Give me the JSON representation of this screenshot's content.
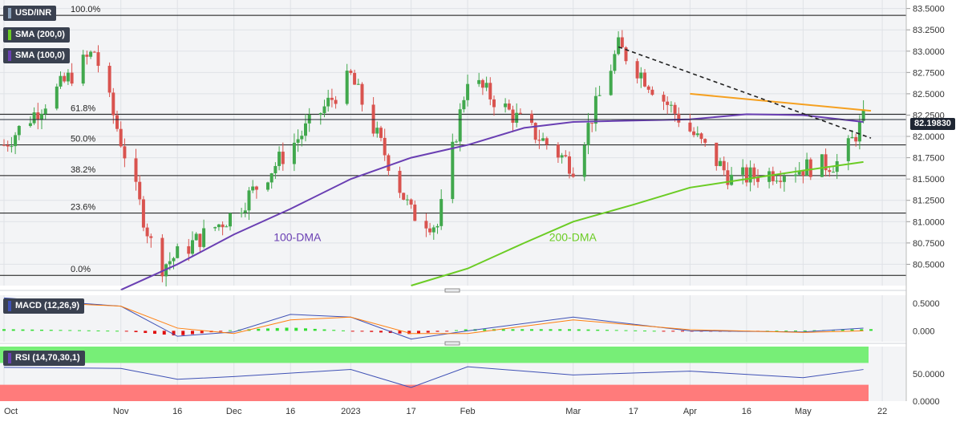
{
  "symbol": "USD/INR",
  "price_tag": "82.19830",
  "colors": {
    "up": "#41a84d",
    "down": "#d9534f",
    "sma100": "#6a3fb3",
    "sma200": "#6bcc24",
    "resistance": "#f5a020",
    "trendline": "#222222",
    "rsi_upper": "#77ee77",
    "rsi_lower": "#ff7b7b",
    "macd_line": "#3f51b5",
    "signal_line": "#ff7f0e"
  },
  "legend": {
    "sma200": "SMA (200,0)",
    "sma100": "SMA (100,0)",
    "macd": "MACD (12,26,9)",
    "rsi": "RSI (14,70,30,1)"
  },
  "annotations": {
    "dma100": "100-DMA",
    "dma200": "200-DMA"
  },
  "fib_labels": [
    "100.0%",
    "61.8%",
    "50.0%",
    "38.2%",
    "23.6%",
    "0.0%"
  ],
  "x_tick_labels": [
    "Oct",
    "Nov",
    "16",
    "Dec",
    "16",
    "2023",
    "17",
    "Feb",
    "Mar",
    "17",
    "Apr",
    "16",
    "May",
    "22"
  ],
  "chart_data": [
    {
      "type": "candlestick",
      "title": "USD/INR",
      "ylim": [
        80.25,
        83.6
      ],
      "y_ticks": [
        "83.5000",
        "83.2500",
        "83.0000",
        "82.7500",
        "82.5000",
        "82.2500",
        "82.0000",
        "81.7500",
        "81.5000",
        "81.2500",
        "81.0000",
        "80.7500",
        "80.5000"
      ],
      "fibonacci_levels": [
        {
          "label": "100.0%",
          "value": 83.42
        },
        {
          "label": "61.8%",
          "value": 82.26
        },
        {
          "label": "50.0%",
          "value": 81.9
        },
        {
          "label": "38.2%",
          "value": 81.54
        },
        {
          "label": "23.6%",
          "value": 81.1
        },
        {
          "label": "0.0%",
          "value": 80.37
        }
      ],
      "last_price": 82.1983,
      "key_points": [
        {
          "x": "Oct",
          "close": 81.9
        },
        {
          "x": "Oct (late)",
          "high": 83.0
        },
        {
          "x": "Nov 10",
          "low": 80.45
        },
        {
          "x": "Dec",
          "close": 81.1
        },
        {
          "x": "2023",
          "close": 82.7
        },
        {
          "x": "17",
          "low": 81.1
        },
        {
          "x": "Jan (late)",
          "low": 80.95
        },
        {
          "x": "Feb",
          "close": 82.7
        },
        {
          "x": "Mar",
          "low": 81.65
        },
        {
          "x": "Mar 13",
          "high": 83.05
        },
        {
          "x": "Apr 13",
          "low": 81.5
        },
        {
          "x": "May 10",
          "low": 81.7
        },
        {
          "x": "May 16",
          "close": 82.2
        }
      ],
      "series": [
        {
          "name": "100-DMA",
          "x": [
            "Nov 1",
            "Nov 16",
            "Dec",
            "Dec 16",
            "2023",
            "Jan 17",
            "Feb",
            "Feb 16",
            "Mar",
            "Apr",
            "Apr 16",
            "May",
            "May 16"
          ],
          "values": [
            80.2,
            80.5,
            80.85,
            81.15,
            81.5,
            81.75,
            81.9,
            82.1,
            82.17,
            82.2,
            82.26,
            82.25,
            82.17
          ]
        },
        {
          "name": "200-DMA",
          "x": [
            "Jan 17",
            "Feb",
            "Feb 16",
            "Mar",
            "Mar 17",
            "Apr",
            "Apr 16",
            "May",
            "May 16"
          ],
          "values": [
            80.25,
            80.45,
            80.75,
            81.0,
            81.2,
            81.4,
            81.5,
            81.6,
            81.7
          ]
        },
        {
          "name": "Resistance",
          "x": [
            "Apr",
            "May 18"
          ],
          "values": [
            82.5,
            82.3
          ]
        },
        {
          "name": "Falling trendline",
          "x": [
            "Mar 13",
            "May 18"
          ],
          "values": [
            83.05,
            81.98
          ]
        }
      ]
    },
    {
      "type": "line",
      "title": "MACD (12,26,9)",
      "ylim": [
        -0.2,
        0.65
      ],
      "y_ticks": [
        "0.5000",
        "0.000"
      ],
      "series": [
        {
          "name": "MACD",
          "x": [
            "Oct",
            "Nov",
            "Nov 16",
            "Dec",
            "Dec 16",
            "2023",
            "Jan 17",
            "Feb",
            "Mar",
            "Apr",
            "May",
            "May 16"
          ],
          "values": [
            0.6,
            0.45,
            -0.1,
            -0.02,
            0.3,
            0.25,
            -0.15,
            0.0,
            0.25,
            0.0,
            -0.02,
            0.05
          ]
        },
        {
          "name": "Signal",
          "x": [
            "Oct",
            "Nov",
            "Nov 16",
            "Dec",
            "Dec 16",
            "2023",
            "Jan 17",
            "Feb",
            "Mar",
            "Apr",
            "May",
            "May 16"
          ],
          "values": [
            0.55,
            0.45,
            0.05,
            -0.05,
            0.2,
            0.25,
            -0.05,
            -0.05,
            0.2,
            0.02,
            -0.03,
            0.0
          ]
        }
      ]
    },
    {
      "type": "line",
      "title": "RSI (14,70,30,1)",
      "ylim": [
        0,
        100
      ],
      "y_ticks": [
        "50.0000",
        "0.0000"
      ],
      "levels": {
        "upper": 70,
        "lower": 30
      },
      "series": [
        {
          "name": "RSI",
          "x": [
            "Oct",
            "Nov",
            "Nov 16",
            "Dec",
            "2023",
            "Jan 17",
            "Feb",
            "Mar",
            "Apr",
            "May",
            "May 16"
          ],
          "values": [
            62,
            60,
            40,
            45,
            58,
            25,
            63,
            48,
            55,
            43,
            58
          ]
        }
      ]
    }
  ]
}
